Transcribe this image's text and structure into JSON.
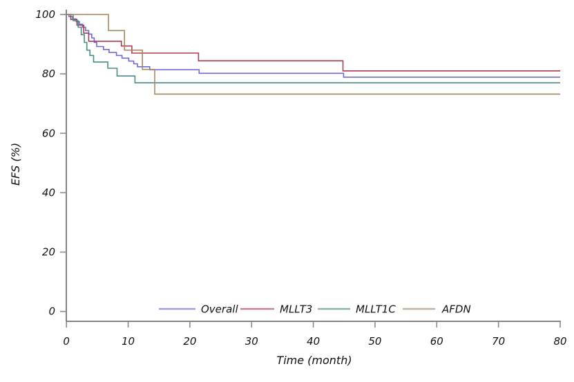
{
  "chart_data": {
    "type": "line",
    "subtype": "kaplan-meier-step",
    "title": "",
    "xlabel": "Time (month)",
    "ylabel": "EFS (%)",
    "xlim": [
      0,
      80
    ],
    "ylim": [
      0,
      100
    ],
    "xticks": [
      0,
      10,
      20,
      30,
      40,
      50,
      60,
      70,
      80
    ],
    "yticks": [
      0,
      20,
      40,
      60,
      80,
      100
    ],
    "grid": false,
    "legend_position": "bottom-center-inside",
    "axis_color": "#5a5a5a",
    "tick_color": "#8a8a8a",
    "series": [
      {
        "name": "Overall",
        "color": "#6b6bd6",
        "points": [
          [
            0,
            100
          ],
          [
            0.4,
            99.3
          ],
          [
            1.0,
            98.5
          ],
          [
            1.6,
            97.6
          ],
          [
            2.1,
            96.7
          ],
          [
            2.6,
            95.7
          ],
          [
            3.1,
            94.6
          ],
          [
            3.6,
            93.4
          ],
          [
            4.1,
            92.1
          ],
          [
            4.5,
            90.6
          ],
          [
            4.9,
            89.2
          ],
          [
            6.0,
            88.2
          ],
          [
            6.9,
            87.2
          ],
          [
            8.1,
            86.2
          ],
          [
            9.0,
            85.3
          ],
          [
            10.1,
            84.3
          ],
          [
            10.9,
            83.4
          ],
          [
            11.5,
            82.4
          ],
          [
            13.5,
            81.4
          ],
          [
            21.5,
            80.2
          ],
          [
            44.9,
            78.9
          ],
          [
            80,
            78.9
          ]
        ]
      },
      {
        "name": "MLLT3",
        "color": "#ae3a50",
        "points": [
          [
            0,
            100
          ],
          [
            0.7,
            98.3
          ],
          [
            1.7,
            96.4
          ],
          [
            2.8,
            93.7
          ],
          [
            3.6,
            91.0
          ],
          [
            8.9,
            89.4
          ],
          [
            10.6,
            87.0
          ],
          [
            21.4,
            84.4
          ],
          [
            44.8,
            81.0
          ],
          [
            80,
            81.0
          ]
        ]
      },
      {
        "name": "MLLT1C",
        "color": "#468d85",
        "points": [
          [
            0,
            100
          ],
          [
            1.1,
            97.9
          ],
          [
            1.9,
            95.7
          ],
          [
            2.4,
            93.2
          ],
          [
            2.9,
            90.6
          ],
          [
            3.3,
            88.0
          ],
          [
            3.8,
            86.2
          ],
          [
            4.4,
            84.0
          ],
          [
            6.7,
            81.9
          ],
          [
            8.2,
            79.3
          ],
          [
            11.1,
            77.0
          ],
          [
            80,
            77.0
          ]
        ]
      },
      {
        "name": "AFDN",
        "color": "#a5875f",
        "points": [
          [
            0,
            100
          ],
          [
            6.8,
            94.6
          ],
          [
            9.4,
            88.0
          ],
          [
            12.3,
            81.5
          ],
          [
            14.3,
            73.2
          ],
          [
            80,
            73.2
          ]
        ]
      }
    ]
  }
}
